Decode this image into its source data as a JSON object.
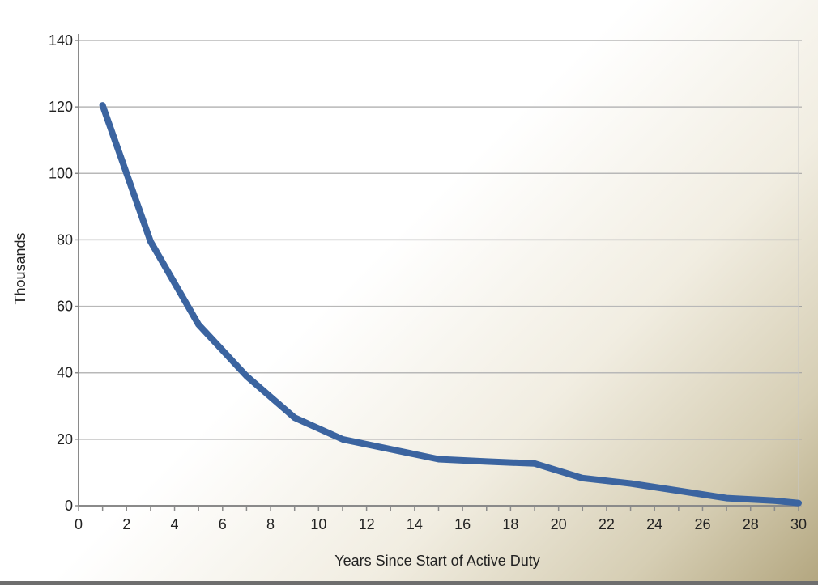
{
  "chart_data": {
    "type": "line",
    "title": "",
    "xlabel": "Years Since Start of Active Duty",
    "ylabel": "Thousands",
    "xlim": [
      0,
      30
    ],
    "ylim": [
      0,
      140
    ],
    "x_ticks": [
      0,
      2,
      4,
      6,
      8,
      10,
      12,
      14,
      16,
      18,
      20,
      22,
      24,
      26,
      28,
      30
    ],
    "y_ticks": [
      0,
      20,
      40,
      60,
      80,
      100,
      120,
      140
    ],
    "grid": "horizontal",
    "legend": "none",
    "series": [
      {
        "color": "#3b64a0",
        "x": [
          1,
          3,
          5,
          7,
          9,
          11,
          13,
          15,
          17,
          19,
          21,
          23,
          25,
          27,
          29,
          30
        ],
        "y": [
          120.5,
          79.5,
          54.5,
          39,
          26.5,
          20,
          17,
          14,
          13.3,
          12.7,
          8.3,
          6.7,
          4.5,
          2.3,
          1.5,
          0.8
        ]
      }
    ]
  }
}
